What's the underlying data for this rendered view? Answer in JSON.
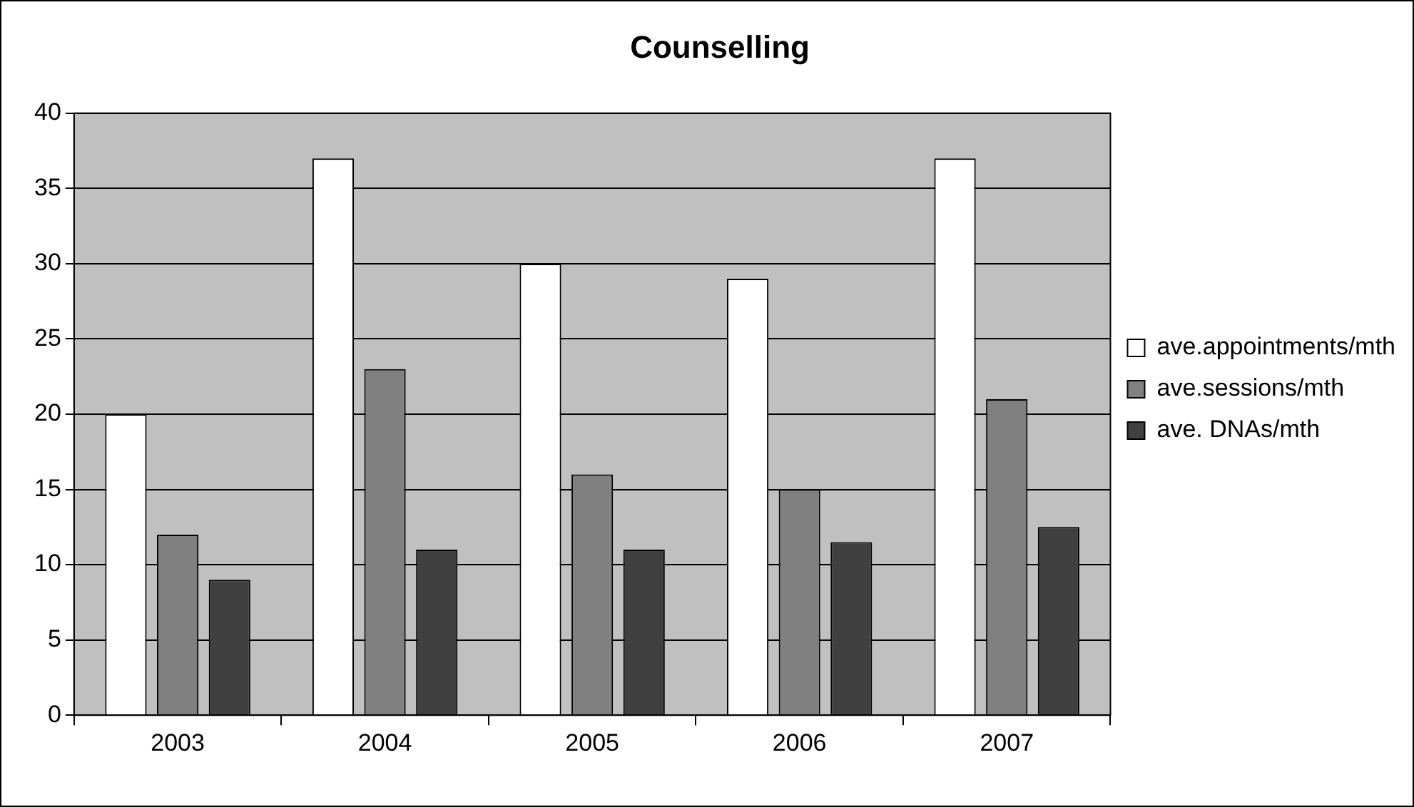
{
  "chart_data": {
    "type": "bar",
    "title": "Counselling",
    "categories": [
      "2003",
      "2004",
      "2005",
      "2006",
      "2007"
    ],
    "series": [
      {
        "name": "ave.appointments/mth",
        "color": "#ffffff",
        "values": [
          20,
          37,
          30,
          29,
          37
        ]
      },
      {
        "name": "ave.sessions/mth",
        "color": "#808080",
        "values": [
          12,
          23,
          16,
          15,
          21
        ]
      },
      {
        "name": "ave. DNAs/mth",
        "color": "#404040",
        "values": [
          9,
          11,
          11,
          11.5,
          12.5
        ]
      }
    ],
    "ylim": [
      0,
      40
    ],
    "yticks": [
      0,
      5,
      10,
      15,
      20,
      25,
      30,
      35,
      40
    ],
    "grid": "y",
    "legend": "right"
  }
}
